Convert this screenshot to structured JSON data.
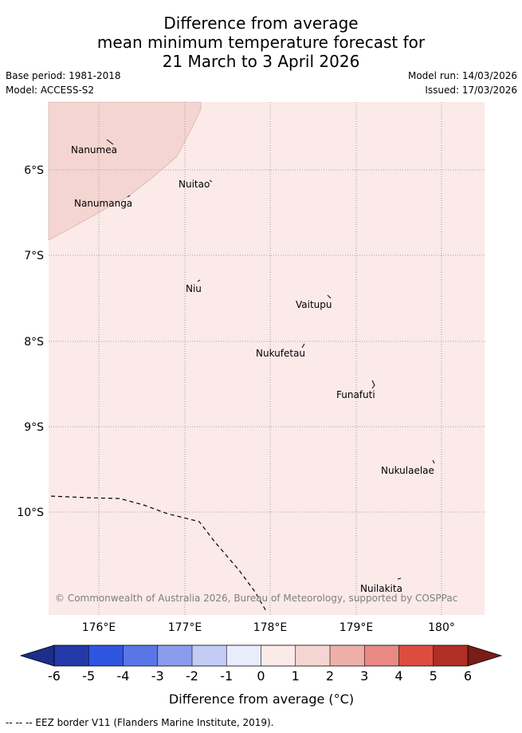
{
  "header": {
    "title_line1": "Difference from average",
    "title_line2": "mean minimum temperature forecast for",
    "title_line3": "21 March to 3 April 2026",
    "base_period": "Base period: 1981-2018",
    "model": "Model: ACCESS-S2",
    "model_run": "Model run: 14/03/2026",
    "issued": "Issued: 17/03/2026"
  },
  "map": {
    "lat_labels": [
      "6°S",
      "7°S",
      "8°S",
      "9°S",
      "10°S"
    ],
    "lon_labels": [
      "176°E",
      "177°E",
      "178°E",
      "179°E",
      "180°"
    ],
    "places": [
      "Nanumea",
      "Nuitao",
      "Nanumanga",
      "Niu",
      "Vaitupu",
      "Nukufetau",
      "Funafuti",
      "Nukulaelae",
      "Nuilakita"
    ],
    "copyright": "© Commonwealth of Australia 2026, Bureau of Meteorology, supported by COSPPac",
    "region_colors": {
      "category_0_to_1": "#fbeae8",
      "category_1_to_2": "#f5d5d1"
    }
  },
  "colorbar": {
    "tick_labels": [
      "-6",
      "-5",
      "-4",
      "-3",
      "-2",
      "-1",
      "0",
      "1",
      "2",
      "3",
      "4",
      "5",
      "6"
    ],
    "colors": [
      "#2439a8",
      "#2f55e0",
      "#5a76e6",
      "#8a9ded",
      "#c3ccf5",
      "#e9ecfb",
      "#fbeae8",
      "#f5d5d1",
      "#efafa9",
      "#e88a83",
      "#dc4c3f",
      "#b02f24"
    ],
    "under_color": "#1c2d8a",
    "over_color": "#7a1c18",
    "label": "Difference from average (°C)"
  },
  "footer": {
    "legend_text": "-- -- -- EEZ border V11 (Flanders Marine Institute, 2019)."
  }
}
